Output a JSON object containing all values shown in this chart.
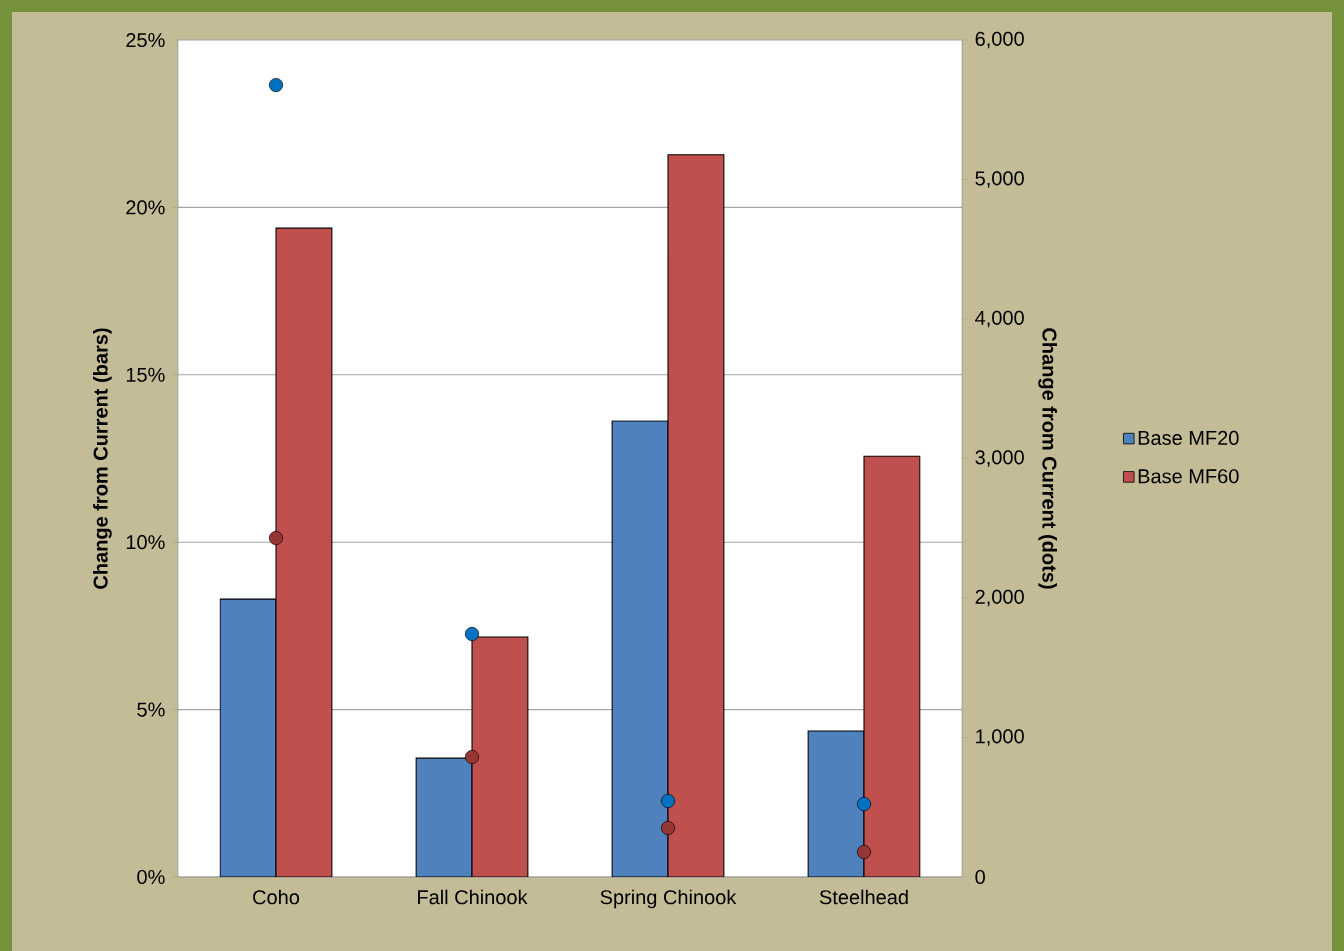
{
  "chart_data": {
    "type": "bar",
    "categories": [
      "Coho",
      "Fall Chinook",
      "Spring Chinook",
      "Steelhead"
    ],
    "ylabel": "Change from Current (bars)",
    "y2label": "Change from Current (dots)",
    "series": [
      {
        "name": "Base MF20",
        "color": "#4f81bd",
        "values": [
          8.3,
          3.55,
          13.62,
          4.36
        ]
      },
      {
        "name": "Base MF60",
        "color": "#c0504d",
        "values": [
          19.38,
          7.17,
          21.57,
          12.57
        ]
      },
      {
        "type": "scatter",
        "axis": "y2",
        "color": "#0070c0",
        "values": [
          5677,
          1742,
          545,
          523
        ]
      },
      {
        "type": "scatter",
        "axis": "y2",
        "color": "#943634",
        "values": [
          2430,
          860,
          351,
          179
        ]
      }
    ],
    "ylim": [
      0,
      25
    ],
    "yticks": [
      {
        "value": 0,
        "label": "0%"
      },
      {
        "value": 5,
        "label": "5%"
      },
      {
        "value": 10,
        "label": "10%"
      },
      {
        "value": 15,
        "label": "15%"
      },
      {
        "value": 20,
        "label": "20%"
      },
      {
        "value": 25,
        "label": "25%"
      }
    ],
    "y2lim": [
      0,
      6000
    ],
    "y2ticks": [
      0,
      {
        "value": 1000,
        "label": "1,000"
      },
      {
        "value": 2000,
        "label": "2,000"
      },
      {
        "value": 3000,
        "label": "3,000"
      },
      {
        "value": 4000,
        "label": "4,000"
      },
      {
        "value": 5000,
        "label": "5,000"
      },
      {
        "value": 6000,
        "label": "6,000"
      }
    ],
    "grid": "y",
    "legend": "right"
  }
}
